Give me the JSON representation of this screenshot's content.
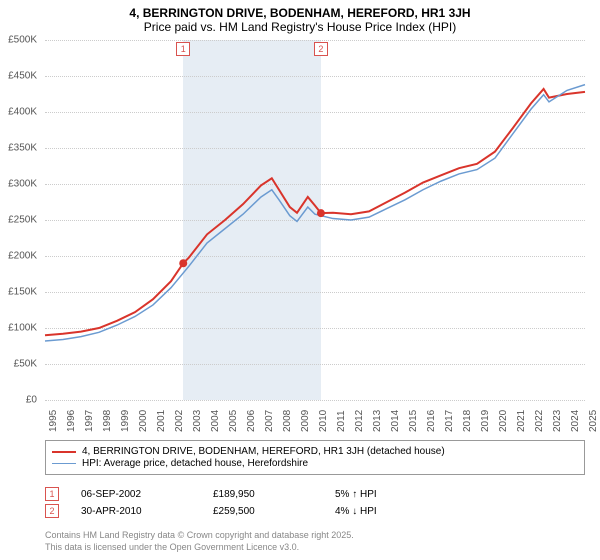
{
  "title_line1": "4, BERRINGTON DRIVE, BODENHAM, HEREFORD, HR1 3JH",
  "title_line2": "Price paid vs. HM Land Registry's House Price Index (HPI)",
  "chart": {
    "type": "line",
    "background_color": "#ffffff",
    "grid_color": "#cccccc",
    "y_axis": {
      "min": 0,
      "max": 500000,
      "ticks": [
        0,
        50000,
        100000,
        150000,
        200000,
        250000,
        300000,
        350000,
        400000,
        450000,
        500000
      ],
      "tick_labels": [
        "£0",
        "£50K",
        "£100K",
        "£150K",
        "£200K",
        "£250K",
        "£300K",
        "£350K",
        "£400K",
        "£450K",
        "£500K"
      ],
      "fontsize": 10
    },
    "x_axis": {
      "min": 1995,
      "max": 2025,
      "ticks": [
        1995,
        1996,
        1997,
        1998,
        1999,
        2000,
        2001,
        2002,
        2003,
        2004,
        2005,
        2006,
        2007,
        2008,
        2009,
        2010,
        2011,
        2012,
        2013,
        2014,
        2015,
        2016,
        2017,
        2018,
        2019,
        2020,
        2021,
        2022,
        2023,
        2024,
        2025
      ],
      "fontsize": 10
    },
    "shaded_region": {
      "from": 2002.68,
      "to": 2010.33,
      "color": "#dbe6f0"
    },
    "series": [
      {
        "name": "price_paid",
        "color": "#d9342b",
        "line_width": 2,
        "points": [
          [
            1995,
            90000
          ],
          [
            1996,
            92000
          ],
          [
            1997,
            95000
          ],
          [
            1998,
            100000
          ],
          [
            1999,
            110000
          ],
          [
            2000,
            122000
          ],
          [
            2001,
            140000
          ],
          [
            2002,
            165000
          ],
          [
            2002.68,
            189950
          ],
          [
            2003,
            198000
          ],
          [
            2004,
            230000
          ],
          [
            2005,
            250000
          ],
          [
            2006,
            272000
          ],
          [
            2007,
            298000
          ],
          [
            2007.6,
            308000
          ],
          [
            2008,
            292000
          ],
          [
            2008.6,
            268000
          ],
          [
            2009,
            260000
          ],
          [
            2009.6,
            282000
          ],
          [
            2010,
            270000
          ],
          [
            2010.33,
            259500
          ],
          [
            2011,
            260000
          ],
          [
            2012,
            258000
          ],
          [
            2013,
            262000
          ],
          [
            2014,
            275000
          ],
          [
            2015,
            288000
          ],
          [
            2016,
            302000
          ],
          [
            2017,
            312000
          ],
          [
            2018,
            322000
          ],
          [
            2019,
            328000
          ],
          [
            2020,
            345000
          ],
          [
            2021,
            378000
          ],
          [
            2022,
            412000
          ],
          [
            2022.7,
            432000
          ],
          [
            2023,
            420000
          ],
          [
            2024,
            425000
          ],
          [
            2025,
            428000
          ]
        ]
      },
      {
        "name": "hpi",
        "color": "#6b9bd1",
        "line_width": 1.5,
        "points": [
          [
            1995,
            82000
          ],
          [
            1996,
            84000
          ],
          [
            1997,
            88000
          ],
          [
            1998,
            94000
          ],
          [
            1999,
            104000
          ],
          [
            2000,
            116000
          ],
          [
            2001,
            132000
          ],
          [
            2002,
            156000
          ],
          [
            2003,
            186000
          ],
          [
            2004,
            218000
          ],
          [
            2005,
            238000
          ],
          [
            2006,
            258000
          ],
          [
            2007,
            282000
          ],
          [
            2007.6,
            292000
          ],
          [
            2008,
            278000
          ],
          [
            2008.6,
            256000
          ],
          [
            2009,
            248000
          ],
          [
            2009.6,
            268000
          ],
          [
            2010,
            258000
          ],
          [
            2011,
            252000
          ],
          [
            2012,
            250000
          ],
          [
            2013,
            254000
          ],
          [
            2014,
            266000
          ],
          [
            2015,
            278000
          ],
          [
            2016,
            292000
          ],
          [
            2017,
            304000
          ],
          [
            2018,
            314000
          ],
          [
            2019,
            320000
          ],
          [
            2020,
            336000
          ],
          [
            2021,
            370000
          ],
          [
            2022,
            404000
          ],
          [
            2022.7,
            424000
          ],
          [
            2023,
            414000
          ],
          [
            2024,
            430000
          ],
          [
            2025,
            438000
          ]
        ]
      }
    ],
    "sale_markers": [
      {
        "n": "1",
        "year": 2002.68,
        "value": 189950,
        "color": "#d9342b"
      },
      {
        "n": "2",
        "year": 2010.33,
        "value": 259500,
        "color": "#d9342b"
      }
    ]
  },
  "legend": {
    "items": [
      {
        "label": "4, BERRINGTON DRIVE, BODENHAM, HEREFORD, HR1 3JH (detached house)",
        "color": "#d9342b",
        "line_width": 2
      },
      {
        "label": "HPI: Average price, detached house, Herefordshire",
        "color": "#6b9bd1",
        "line_width": 1.5
      }
    ]
  },
  "sales": [
    {
      "n": "1",
      "date": "06-SEP-2002",
      "price": "£189,950",
      "pct": "5% ↑ HPI"
    },
    {
      "n": "2",
      "date": "30-APR-2010",
      "price": "£259,500",
      "pct": "4% ↓ HPI"
    }
  ],
  "footer_line1": "Contains HM Land Registry data © Crown copyright and database right 2025.",
  "footer_line2": "This data is licensed under the Open Government Licence v3.0."
}
